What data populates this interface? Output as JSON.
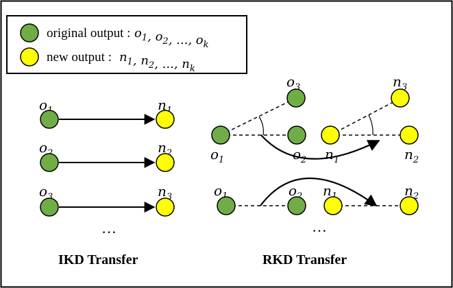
{
  "colors": {
    "original": "#70ad47",
    "new": "#ffff00",
    "stroke": "#000000"
  },
  "legend": {
    "original_text": "original output :",
    "original_math": [
      "o1",
      "o2",
      "...",
      "ok"
    ],
    "new_text": "new output :",
    "new_math": [
      "n1",
      "n2",
      "...",
      "nk"
    ]
  },
  "ikd": {
    "caption": "IKD Transfer",
    "ellipsis": "…",
    "rows": [
      {
        "from": "o1",
        "to": "n1"
      },
      {
        "from": "o2",
        "to": "n2"
      },
      {
        "from": "o3",
        "to": "n3"
      }
    ]
  },
  "rkd": {
    "caption": "RKD Transfer",
    "ellipsis": "…",
    "angle_group": {
      "original": [
        "o3",
        "o1",
        "o2"
      ],
      "new": [
        "n3",
        "n1",
        "n2"
      ]
    },
    "distance_group": {
      "original": [
        "o1",
        "o2"
      ],
      "new": [
        "n1",
        "n2"
      ]
    }
  },
  "symbols": {
    "o1": {
      "base": "o",
      "sub": "1"
    },
    "o2": {
      "base": "o",
      "sub": "2"
    },
    "o3": {
      "base": "o",
      "sub": "3"
    },
    "ok": {
      "base": "o",
      "sub": "k"
    },
    "n1": {
      "base": "n",
      "sub": "1"
    },
    "n2": {
      "base": "n",
      "sub": "2"
    },
    "n3": {
      "base": "n",
      "sub": "3"
    },
    "nk": {
      "base": "n",
      "sub": "k"
    },
    "...": {
      "base": "...",
      "sub": ""
    }
  }
}
